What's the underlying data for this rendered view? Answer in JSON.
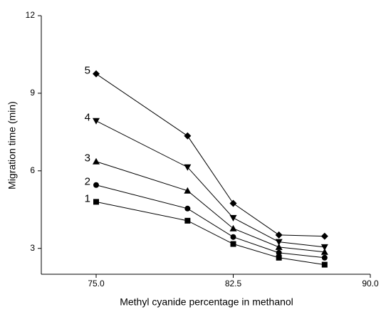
{
  "chart_data": {
    "type": "line",
    "x_label": "Methyl cyanide percentage in methanol",
    "y_label": "Migration time (min)",
    "x": [
      75,
      80,
      82.5,
      85,
      87.5
    ],
    "series": [
      {
        "name": "1",
        "color": "#000000",
        "marker": "square",
        "values": [
          4.8,
          4.07,
          3.17,
          2.64,
          2.37
        ]
      },
      {
        "name": "2",
        "color": "#000000",
        "marker": "circle",
        "values": [
          5.45,
          4.54,
          3.44,
          2.83,
          2.64
        ]
      },
      {
        "name": "3",
        "color": "#000000",
        "marker": "triangle-up",
        "values": [
          6.36,
          5.23,
          3.77,
          3.05,
          2.86
        ]
      },
      {
        "name": "4",
        "color": "#000000",
        "marker": "triangle-down",
        "values": [
          7.93,
          6.14,
          4.18,
          3.25,
          3.05
        ]
      },
      {
        "name": "5",
        "color": "#000000",
        "marker": "diamond",
        "values": [
          9.75,
          7.35,
          4.74,
          3.52,
          3.47
        ]
      }
    ],
    "xlim": [
      72,
      90
    ],
    "xticks": [
      {
        "value": 75,
        "label": "75.0"
      },
      {
        "value": 82.5,
        "label": "82.5"
      },
      {
        "value": 90,
        "label": "90.0"
      }
    ],
    "ylim": [
      2,
      12
    ],
    "yticks": [
      3,
      6,
      9,
      12
    ]
  }
}
